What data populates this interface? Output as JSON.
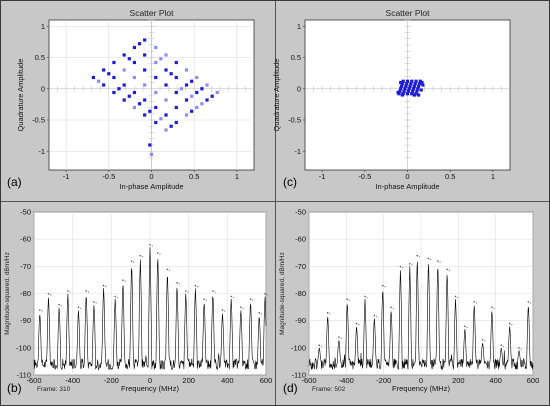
{
  "colors": {
    "panel": "#c8c8c8",
    "plot": "#ffffff",
    "point": "#1c1cd8",
    "point_light": "#8c8cf0",
    "trace": "#000000"
  },
  "chart_data": [
    {
      "type": "scatter",
      "panel_label": "(a)",
      "title": "Scatter Plot",
      "xlabel": "In-phase Amplitude",
      "ylabel": "Quadrature Amplitude",
      "xlim": [
        -1.2,
        1.2
      ],
      "ylim": [
        -1.3,
        1.1
      ],
      "xticks": [
        -1,
        -0.5,
        0,
        0.5,
        1
      ],
      "yticks": [
        -1,
        -0.5,
        0,
        0.5,
        1
      ],
      "grid": true,
      "points": [
        [
          -0.08,
          0.78
        ],
        [
          -0.2,
          0.66
        ],
        [
          0.05,
          0.66
        ],
        [
          -0.32,
          0.54
        ],
        [
          -0.08,
          0.54
        ],
        [
          0.17,
          0.54
        ],
        [
          -0.44,
          0.42
        ],
        [
          -0.2,
          0.42
        ],
        [
          0.05,
          0.42
        ],
        [
          0.29,
          0.42
        ],
        [
          -0.56,
          0.3
        ],
        [
          -0.32,
          0.3
        ],
        [
          -0.08,
          0.3
        ],
        [
          0.17,
          0.3
        ],
        [
          0.41,
          0.3
        ],
        [
          -0.68,
          0.18
        ],
        [
          -0.44,
          0.18
        ],
        [
          -0.2,
          0.18
        ],
        [
          0.05,
          0.18
        ],
        [
          0.29,
          0.18
        ],
        [
          0.53,
          0.18
        ],
        [
          -0.56,
          0.06
        ],
        [
          -0.32,
          0.06
        ],
        [
          -0.08,
          0.06
        ],
        [
          0.17,
          0.06
        ],
        [
          0.41,
          0.06
        ],
        [
          0.65,
          0.06
        ],
        [
          -0.44,
          -0.06
        ],
        [
          -0.2,
          -0.06
        ],
        [
          0.05,
          -0.06
        ],
        [
          0.29,
          -0.06
        ],
        [
          0.53,
          -0.06
        ],
        [
          0.77,
          -0.06
        ],
        [
          -0.32,
          -0.18
        ],
        [
          -0.08,
          -0.18
        ],
        [
          0.17,
          -0.18
        ],
        [
          0.41,
          -0.18
        ],
        [
          0.65,
          -0.18
        ],
        [
          -0.2,
          -0.3
        ],
        [
          0.05,
          -0.3
        ],
        [
          0.29,
          -0.3
        ],
        [
          0.53,
          -0.3
        ],
        [
          -0.08,
          -0.42
        ],
        [
          0.17,
          -0.42
        ],
        [
          0.41,
          -0.42
        ],
        [
          0.05,
          -0.54
        ],
        [
          0.29,
          -0.54
        ],
        [
          0.17,
          -0.66
        ],
        [
          -0.14,
          0.72
        ],
        [
          -0.26,
          0.48
        ],
        [
          0.11,
          0.48
        ],
        [
          -0.5,
          0.24
        ],
        [
          0.23,
          0.24
        ],
        [
          -0.62,
          0.12
        ],
        [
          0.47,
          0.12
        ],
        [
          -0.38,
          0.0
        ],
        [
          0.35,
          0.0
        ],
        [
          0.59,
          0.0
        ],
        [
          -0.26,
          -0.12
        ],
        [
          0.47,
          -0.12
        ],
        [
          0.71,
          -0.12
        ],
        [
          -0.14,
          -0.24
        ],
        [
          0.59,
          -0.24
        ],
        [
          -0.02,
          -0.36
        ],
        [
          0.47,
          -0.36
        ],
        [
          0.11,
          -0.48
        ],
        [
          0.23,
          -0.6
        ],
        [
          -0.02,
          -0.9
        ],
        [
          0.0,
          -1.05
        ]
      ]
    },
    {
      "type": "scatter",
      "panel_label": "(c)",
      "title": "Scatter Plot",
      "xlabel": "In-phase Amplitude",
      "ylabel": "Quadrature Amplitude",
      "xlim": [
        -1.2,
        1.2
      ],
      "ylim": [
        -1.3,
        1.1
      ],
      "xticks": [
        -1,
        -0.5,
        0,
        0.5,
        1
      ],
      "yticks": [
        -1,
        -0.5,
        0,
        0.5,
        1
      ],
      "grid": false,
      "points": [
        [
          -0.05,
          0.12
        ],
        [
          0.0,
          0.12
        ],
        [
          0.05,
          0.12
        ],
        [
          0.1,
          0.12
        ],
        [
          0.15,
          0.12
        ],
        [
          -0.06,
          0.08
        ],
        [
          -0.01,
          0.08
        ],
        [
          0.04,
          0.08
        ],
        [
          0.09,
          0.08
        ],
        [
          0.14,
          0.08
        ],
        [
          -0.07,
          0.04
        ],
        [
          -0.02,
          0.04
        ],
        [
          0.03,
          0.04
        ],
        [
          0.08,
          0.04
        ],
        [
          0.13,
          0.04
        ],
        [
          -0.08,
          0.0
        ],
        [
          -0.03,
          0.0
        ],
        [
          0.02,
          0.0
        ],
        [
          0.07,
          0.0
        ],
        [
          0.12,
          0.0
        ],
        [
          -0.09,
          -0.04
        ],
        [
          -0.04,
          -0.04
        ],
        [
          0.01,
          -0.04
        ],
        [
          0.06,
          -0.04
        ],
        [
          0.11,
          -0.04
        ],
        [
          -0.1,
          -0.08
        ],
        [
          -0.05,
          -0.08
        ],
        [
          0.0,
          -0.08
        ],
        [
          0.05,
          -0.08
        ],
        [
          0.1,
          -0.08
        ],
        [
          -0.08,
          0.1
        ],
        [
          0.17,
          0.1
        ],
        [
          -0.11,
          -0.06
        ],
        [
          0.13,
          -0.1
        ],
        [
          0.18,
          0.06
        ],
        [
          -0.06,
          -0.1
        ],
        [
          0.08,
          -0.1
        ],
        [
          0.16,
          -0.02
        ]
      ]
    },
    {
      "type": "line",
      "panel_label": "(b)",
      "frame_text": "Frame: 310",
      "xlabel": "Frequency (MHz)",
      "ylabel": "Magnitude-squared, dBm/Hz",
      "xlim": [
        -600,
        600
      ],
      "ylim": [
        -110,
        -50
      ],
      "xticks": [
        -600,
        -400,
        -200,
        0,
        200,
        400,
        600
      ],
      "yticks": [
        -110,
        -100,
        -90,
        -80,
        -70,
        -60,
        -50
      ],
      "grid": true,
      "floor": -106,
      "peaks": [
        {
          "x": -570,
          "y": -87
        },
        {
          "x": -525,
          "y": -81
        },
        {
          "x": -470,
          "y": -85
        },
        {
          "x": -425,
          "y": -80
        },
        {
          "x": -370,
          "y": -86
        },
        {
          "x": -330,
          "y": -80
        },
        {
          "x": -290,
          "y": -84
        },
        {
          "x": -240,
          "y": -78
        },
        {
          "x": -180,
          "y": -82
        },
        {
          "x": -140,
          "y": -76
        },
        {
          "x": -95,
          "y": -69
        },
        {
          "x": -50,
          "y": -67
        },
        {
          "x": 0,
          "y": -63
        },
        {
          "x": 40,
          "y": -66
        },
        {
          "x": 90,
          "y": -72
        },
        {
          "x": 140,
          "y": -77
        },
        {
          "x": 185,
          "y": -80
        },
        {
          "x": 235,
          "y": -78
        },
        {
          "x": 280,
          "y": -83
        },
        {
          "x": 325,
          "y": -80
        },
        {
          "x": 375,
          "y": -87
        },
        {
          "x": 420,
          "y": -82
        },
        {
          "x": 470,
          "y": -86
        },
        {
          "x": 520,
          "y": -83
        },
        {
          "x": 565,
          "y": -88
        },
        {
          "x": 595,
          "y": -81
        }
      ]
    },
    {
      "type": "line",
      "panel_label": "(d)",
      "frame_text": "Frame: 502",
      "xlabel": "Frequency (MHz)",
      "ylabel": "Magnitude-squared, dBm/Hz",
      "xlim": [
        -600,
        600
      ],
      "ylim": [
        -110,
        -50
      ],
      "xticks": [
        -600,
        -400,
        -200,
        0,
        200,
        400,
        600
      ],
      "yticks": [
        -110,
        -100,
        -90,
        -80,
        -70,
        -60,
        -50
      ],
      "grid": true,
      "floor": -106,
      "peaks": [
        {
          "x": -545,
          "y": -100
        },
        {
          "x": -500,
          "y": -88
        },
        {
          "x": -440,
          "y": -97
        },
        {
          "x": -395,
          "y": -83
        },
        {
          "x": -345,
          "y": -92
        },
        {
          "x": -300,
          "y": -82
        },
        {
          "x": -250,
          "y": -89
        },
        {
          "x": -205,
          "y": -78
        },
        {
          "x": -160,
          "y": -86
        },
        {
          "x": -110,
          "y": -71
        },
        {
          "x": -60,
          "y": -70
        },
        {
          "x": -20,
          "y": -67
        },
        {
          "x": 40,
          "y": -68
        },
        {
          "x": 90,
          "y": -69
        },
        {
          "x": 140,
          "y": -72
        },
        {
          "x": 185,
          "y": -82
        },
        {
          "x": 235,
          "y": -93
        },
        {
          "x": 285,
          "y": -84
        },
        {
          "x": 330,
          "y": -98
        },
        {
          "x": 380,
          "y": -86
        },
        {
          "x": 430,
          "y": -100
        },
        {
          "x": 475,
          "y": -92
        },
        {
          "x": 525,
          "y": -101
        },
        {
          "x": 575,
          "y": -84
        }
      ]
    }
  ]
}
